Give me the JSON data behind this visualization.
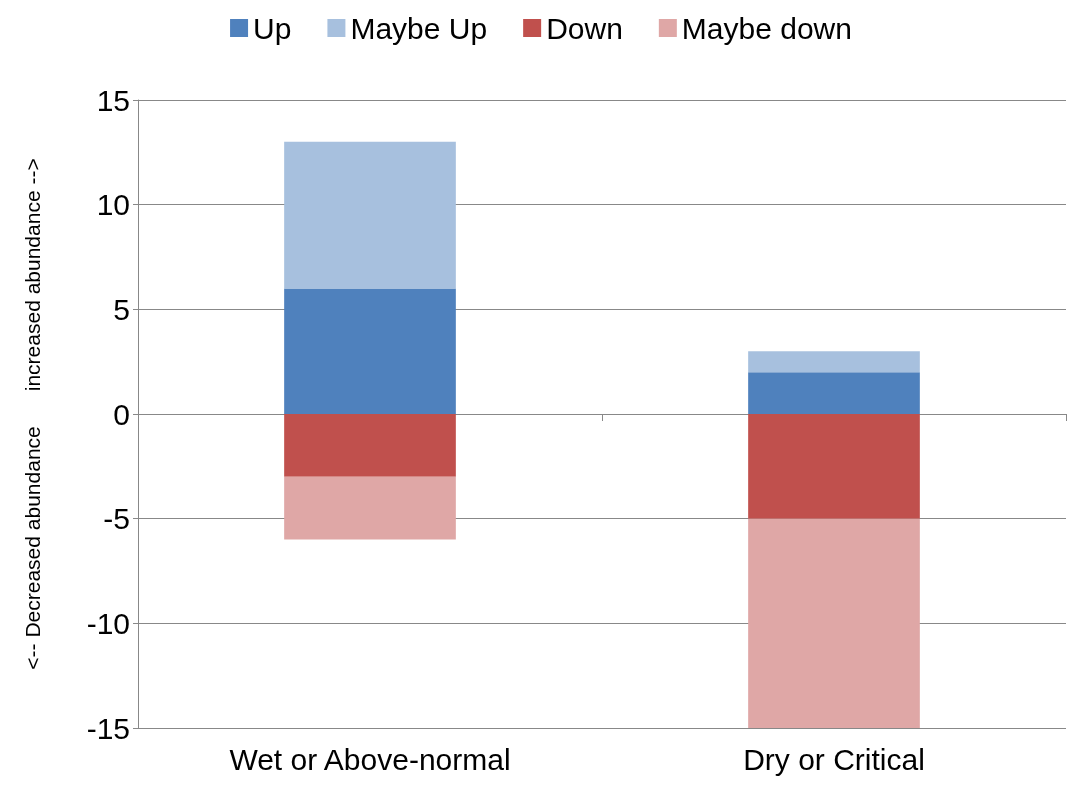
{
  "chart_data": {
    "type": "bar",
    "stacked": true,
    "categories": [
      "Wet or Above-normal",
      "Dry or Critical"
    ],
    "ylabel": "<-- Decreased abundance      increased abundance -->",
    "series": [
      {
        "name": "Up",
        "color": "#4f81bd",
        "values": [
          6,
          2
        ]
      },
      {
        "name": "Maybe Up",
        "color": "#a7c0de",
        "values": [
          7,
          1
        ]
      },
      {
        "name": "Down",
        "color": "#c0504d",
        "values": [
          -3,
          -5
        ]
      },
      {
        "name": "Maybe down",
        "color": "#dfa7a6",
        "values": [
          -3,
          -10
        ]
      }
    ],
    "ylim": [
      -15,
      15
    ],
    "yticks": [
      -15,
      -10,
      -5,
      0,
      5,
      10,
      15
    ],
    "grid": "y",
    "legend": "top"
  }
}
